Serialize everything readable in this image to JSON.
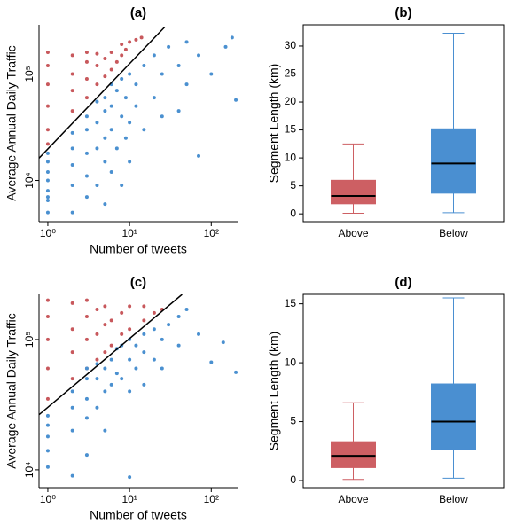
{
  "chart_data": [
    {
      "type": "scatter",
      "title": "(a)",
      "xlabel": "Number of tweets",
      "ylabel": "Average Annual Daily Traffic",
      "xlog": true,
      "ylog": true,
      "xlim": [
        0.78,
        210
      ],
      "ylim": [
        4100,
        290000
      ],
      "xticks": [
        {
          "value": 1,
          "label": "10⁰"
        },
        {
          "value": 10,
          "label": "10¹"
        },
        {
          "value": 100,
          "label": "10²"
        }
      ],
      "yticks": [
        {
          "value": 10000,
          "label": "10⁴"
        },
        {
          "value": 100000,
          "label": "10⁵"
        }
      ],
      "line": {
        "color": "#000000",
        "x": [
          0.78,
          27
        ],
        "y": [
          16200,
          277000
        ]
      },
      "series": [
        {
          "color": "#c8585c",
          "x": [
            1,
            1,
            1,
            1,
            1,
            1,
            2,
            2,
            2,
            2,
            3,
            3,
            3,
            3,
            4,
            4,
            4,
            5,
            5,
            6,
            6,
            7,
            8,
            8,
            9,
            10,
            12,
            14
          ],
          "y": [
            30000,
            50000,
            80000,
            120000,
            160000,
            22000,
            45000,
            70000,
            100000,
            150000,
            60000,
            90000,
            130000,
            160000,
            80000,
            120000,
            155000,
            95000,
            140000,
            110000,
            160000,
            130000,
            150000,
            190000,
            170000,
            200000,
            210000,
            220000
          ]
        },
        {
          "color": "#4a90d0",
          "x": [
            1,
            1,
            1,
            1,
            1,
            1,
            1,
            1,
            2,
            2,
            2,
            2,
            2,
            3,
            3,
            3,
            3,
            3,
            4,
            4,
            4,
            4,
            5,
            5,
            5,
            5,
            5,
            6,
            6,
            6,
            6,
            7,
            7,
            8,
            8,
            8,
            9,
            9,
            10,
            10,
            10,
            12,
            12,
            15,
            15,
            20,
            20,
            25,
            25,
            30,
            40,
            40,
            50,
            50,
            70,
            70,
            100,
            150,
            180,
            200
          ],
          "y": [
            5000,
            6500,
            8000,
            10000,
            12000,
            15000,
            18000,
            7000,
            5000,
            9000,
            14000,
            20000,
            28000,
            7000,
            11000,
            18000,
            30000,
            40000,
            9000,
            20000,
            35000,
            55000,
            6000,
            15000,
            25000,
            45000,
            60000,
            12000,
            30000,
            50000,
            80000,
            20000,
            70000,
            9000,
            40000,
            90000,
            25000,
            60000,
            15000,
            35000,
            100000,
            50000,
            80000,
            30000,
            120000,
            60000,
            150000,
            100000,
            40000,
            180000,
            45000,
            120000,
            200000,
            80000,
            17000,
            150000,
            100000,
            180000,
            220000,
            57000
          ]
        }
      ]
    },
    {
      "type": "box",
      "title": "(b)",
      "ylabel": "Segment Length (km)",
      "categories": [
        "Above",
        "Below"
      ],
      "ylim": [
        -1.4,
        33.8
      ],
      "yticks": [
        0,
        5,
        10,
        15,
        20,
        25,
        30
      ],
      "colors": [
        "#cd5f63",
        "#4a8fd1"
      ],
      "min": [
        0.1,
        0.2
      ],
      "q1": [
        1.8,
        3.7
      ],
      "median": [
        3.2,
        9.0
      ],
      "q3": [
        6.0,
        15.2
      ],
      "max": [
        12.5,
        32.3
      ]
    },
    {
      "type": "scatter",
      "title": "(c)",
      "xlabel": "Number of tweets",
      "ylabel": "Average Annual Daily Traffic",
      "xlog": true,
      "ylog": true,
      "xlim": [
        0.78,
        210
      ],
      "ylim": [
        7300,
        222000
      ],
      "xticks": [
        {
          "value": 1,
          "label": "10⁰"
        },
        {
          "value": 10,
          "label": "10¹"
        },
        {
          "value": 100,
          "label": "10²"
        }
      ],
      "yticks": [
        {
          "value": 10000,
          "label": "10⁴"
        },
        {
          "value": 100000,
          "label": "10⁵"
        }
      ],
      "line": {
        "color": "#000000",
        "x": [
          0.78,
          44
        ],
        "y": [
          26500,
          222000
        ]
      },
      "series": [
        {
          "color": "#c8585c",
          "x": [
            1,
            1,
            1,
            1,
            1,
            2,
            2,
            2,
            2,
            3,
            3,
            3,
            3,
            4,
            4,
            4,
            5,
            5,
            5,
            6,
            6,
            8,
            8,
            10,
            10,
            15,
            15,
            20,
            25
          ],
          "y": [
            35000,
            60000,
            100000,
            150000,
            200000,
            50000,
            80000,
            120000,
            190000,
            60000,
            100000,
            150000,
            200000,
            70000,
            110000,
            170000,
            80000,
            130000,
            180000,
            90000,
            140000,
            110000,
            160000,
            120000,
            180000,
            140000,
            180000,
            160000,
            170000
          ]
        },
        {
          "color": "#4a90d0",
          "x": [
            1,
            1,
            1,
            1,
            1,
            2,
            2,
            2,
            2,
            3,
            3,
            3,
            3,
            3,
            4,
            4,
            4,
            5,
            5,
            5,
            6,
            6,
            7,
            7,
            8,
            8,
            10,
            10,
            10,
            10,
            12,
            12,
            15,
            15,
            15,
            20,
            20,
            25,
            25,
            30,
            40,
            40,
            50,
            70,
            100,
            140,
            200
          ],
          "y": [
            10500,
            14000,
            18000,
            22000,
            26000,
            9000,
            20000,
            30000,
            40000,
            13000,
            25000,
            35000,
            50000,
            60000,
            30000,
            50000,
            65000,
            20000,
            40000,
            60000,
            45000,
            70000,
            55000,
            85000,
            50000,
            90000,
            8800,
            40000,
            70000,
            100000,
            60000,
            90000,
            45000,
            80000,
            110000,
            70000,
            120000,
            60000,
            100000,
            130000,
            90000,
            150000,
            170000,
            110000,
            67000,
            95000,
            56000
          ]
        }
      ]
    },
    {
      "type": "box",
      "title": "(d)",
      "ylabel": "Segment Length (km)",
      "categories": [
        "Above",
        "Below"
      ],
      "ylim": [
        -0.6,
        15.8
      ],
      "yticks": [
        0,
        5,
        10,
        15
      ],
      "colors": [
        "#cd5f63",
        "#4a8fd1"
      ],
      "min": [
        0.1,
        0.2
      ],
      "q1": [
        1.1,
        2.6
      ],
      "median": [
        2.1,
        5.0
      ],
      "q3": [
        3.3,
        8.2
      ],
      "max": [
        6.6,
        15.5
      ]
    }
  ]
}
